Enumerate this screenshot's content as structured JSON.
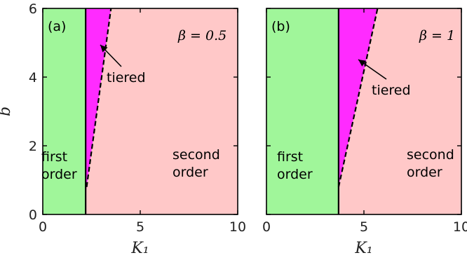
{
  "chart_data": [
    {
      "type": "area",
      "panel_label": "(a)",
      "annotation": "β = 0.5",
      "xlabel": "K₁",
      "ylabel": "b",
      "xlim": [
        0,
        10
      ],
      "ylim": [
        0,
        6
      ],
      "xticks": [
        "0",
        "5",
        "10"
      ],
      "yticks": [
        "0",
        "2",
        "4",
        "6"
      ],
      "grid": false,
      "first_order_boundary_K1": 2.2,
      "second_order_boundary": {
        "x": [
          2.25,
          3.5
        ],
        "y": [
          0.8,
          6
        ]
      },
      "regions": [
        {
          "name": "first order",
          "label_lines": [
            "first",
            "order"
          ],
          "color": "#a0f69a"
        },
        {
          "name": "tiered",
          "label_lines": [
            "tiered"
          ],
          "color": "#ff2bff"
        },
        {
          "name": "second order",
          "label_lines": [
            "second",
            "order"
          ],
          "color": "#ffc8c8"
        }
      ]
    },
    {
      "type": "area",
      "panel_label": "(b)",
      "annotation": "β = 1",
      "xlabel": "K₁",
      "ylabel": "",
      "xlim": [
        0,
        10
      ],
      "ylim": [
        0,
        6
      ],
      "xticks": [
        "0",
        "5",
        "10"
      ],
      "yticks": [],
      "grid": false,
      "first_order_boundary_K1": 3.7,
      "second_order_boundary": {
        "x": [
          3.7,
          5.7
        ],
        "y": [
          0.8,
          6
        ]
      },
      "regions": [
        {
          "name": "first order",
          "label_lines": [
            "first",
            "order"
          ],
          "color": "#a0f69a"
        },
        {
          "name": "tiered",
          "label_lines": [
            "tiered"
          ],
          "color": "#ff2bff"
        },
        {
          "name": "second order",
          "label_lines": [
            "second",
            "order"
          ],
          "color": "#ffc8c8"
        }
      ]
    }
  ]
}
